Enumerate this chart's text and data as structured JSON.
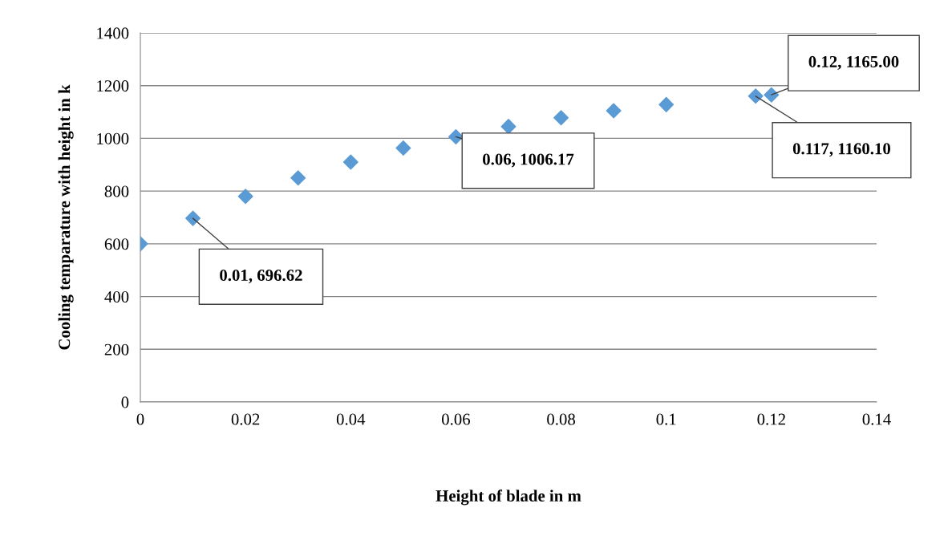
{
  "chart_data": {
    "type": "scatter",
    "xlabel": "Height of blade in m",
    "ylabel": "Cooling temparature with height in k",
    "x": [
      0,
      0.01,
      0.02,
      0.03,
      0.04,
      0.05,
      0.06,
      0.07,
      0.08,
      0.09,
      0.1,
      0.117,
      0.12
    ],
    "series": [
      {
        "color": "#5b9bd5",
        "values": [
          600,
          696.62,
          780,
          850,
          910,
          963,
          1006.17,
          1045,
          1078,
          1105,
          1128,
          1160.1,
          1165.0
        ]
      }
    ],
    "marker": "diamond",
    "grid": "y",
    "legend": false,
    "xlim": [
      0,
      0.14
    ],
    "xticks": [
      0,
      0.02,
      0.04,
      0.06,
      0.08,
      0.1,
      0.12,
      0.14
    ],
    "ylim": [
      0,
      1400
    ],
    "yticks": [
      0,
      200,
      400,
      600,
      800,
      1000,
      1200,
      1400
    ],
    "annotations": [
      {
        "text": "0.01, 696.62",
        "x": 0.01,
        "y": 696.62
      },
      {
        "text": "0.06, 1006.17",
        "x": 0.06,
        "y": 1006.17
      },
      {
        "text": "0.12, 1165.00",
        "x": 0.12,
        "y": 1165.0
      },
      {
        "text": "0.117, 1160.10",
        "x": 0.117,
        "y": 1160.1
      }
    ]
  }
}
